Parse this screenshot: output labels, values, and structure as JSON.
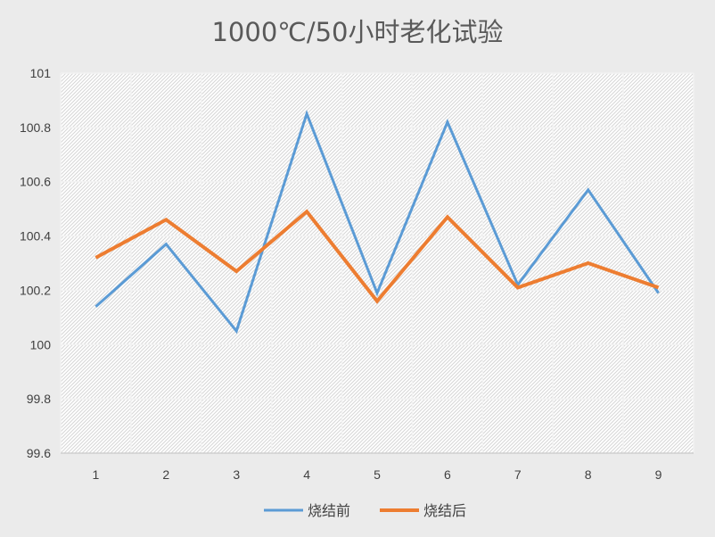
{
  "chart_data": {
    "type": "line",
    "title": "1000℃/50小时老化试验",
    "xlabel": "",
    "ylabel": "",
    "categories": [
      "1",
      "2",
      "3",
      "4",
      "5",
      "6",
      "7",
      "8",
      "9"
    ],
    "yticks": [
      "99.6",
      "99.8",
      "100",
      "100.2",
      "100.4",
      "100.6",
      "100.8",
      "101"
    ],
    "ylim": [
      99.6,
      101
    ],
    "grid": true,
    "legend_position": "bottom",
    "series": [
      {
        "name": "烧结前",
        "color": "#5b9bd5",
        "values": [
          100.14,
          100.37,
          100.05,
          100.85,
          100.19,
          100.82,
          100.22,
          100.57,
          100.19
        ]
      },
      {
        "name": "烧结后",
        "color": "#ed7d31",
        "values": [
          100.32,
          100.46,
          100.27,
          100.49,
          100.16,
          100.47,
          100.21,
          100.3,
          100.21
        ]
      }
    ]
  }
}
